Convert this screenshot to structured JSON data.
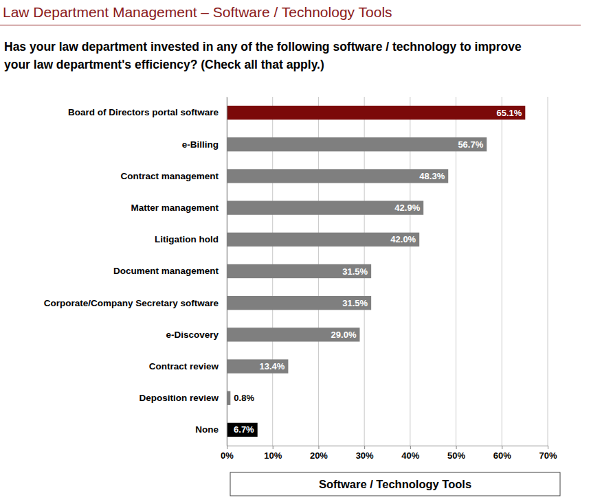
{
  "chart_data": {
    "type": "bar",
    "orientation": "horizontal",
    "title": "Law Department Management – Software / Technology Tools",
    "subtitle": "Has your law department invested in any of the following software / technology to improve your law department's efficiency? (Check all that apply.)",
    "xlabel": "Software / Technology Tools",
    "categories": [
      "Board of Directors portal software",
      "e-Billing",
      "Contract management",
      "Matter management",
      "Litigation hold",
      "Document management",
      "Corporate/Company Secretary software",
      "e-Discovery",
      "Contract review",
      "Deposition review",
      "None"
    ],
    "values": [
      65.1,
      56.7,
      48.3,
      42.9,
      42.0,
      31.5,
      31.5,
      29.0,
      13.4,
      0.8,
      6.7
    ],
    "value_labels": [
      "65.1%",
      "56.7%",
      "48.3%",
      "42.9%",
      "42.0%",
      "31.5%",
      "31.5%",
      "29.0%",
      "13.4%",
      "0.8%",
      "6.7%"
    ],
    "colors": [
      "#7b0a0a",
      "#7f7f7f",
      "#7f7f7f",
      "#7f7f7f",
      "#7f7f7f",
      "#7f7f7f",
      "#7f7f7f",
      "#7f7f7f",
      "#7f7f7f",
      "#7f7f7f",
      "#000000"
    ],
    "xlim": [
      0,
      70
    ],
    "xticks": [
      {
        "value": 0,
        "label": "0%"
      },
      {
        "value": 10,
        "label": "10%"
      },
      {
        "value": 20,
        "label": "20%"
      },
      {
        "value": 30,
        "label": "30%"
      },
      {
        "value": 40,
        "label": "40%"
      },
      {
        "value": 50,
        "label": "50%"
      },
      {
        "value": 60,
        "label": "60%"
      },
      {
        "value": 70,
        "label": "70%"
      }
    ],
    "grid": true,
    "data_labels": true
  }
}
